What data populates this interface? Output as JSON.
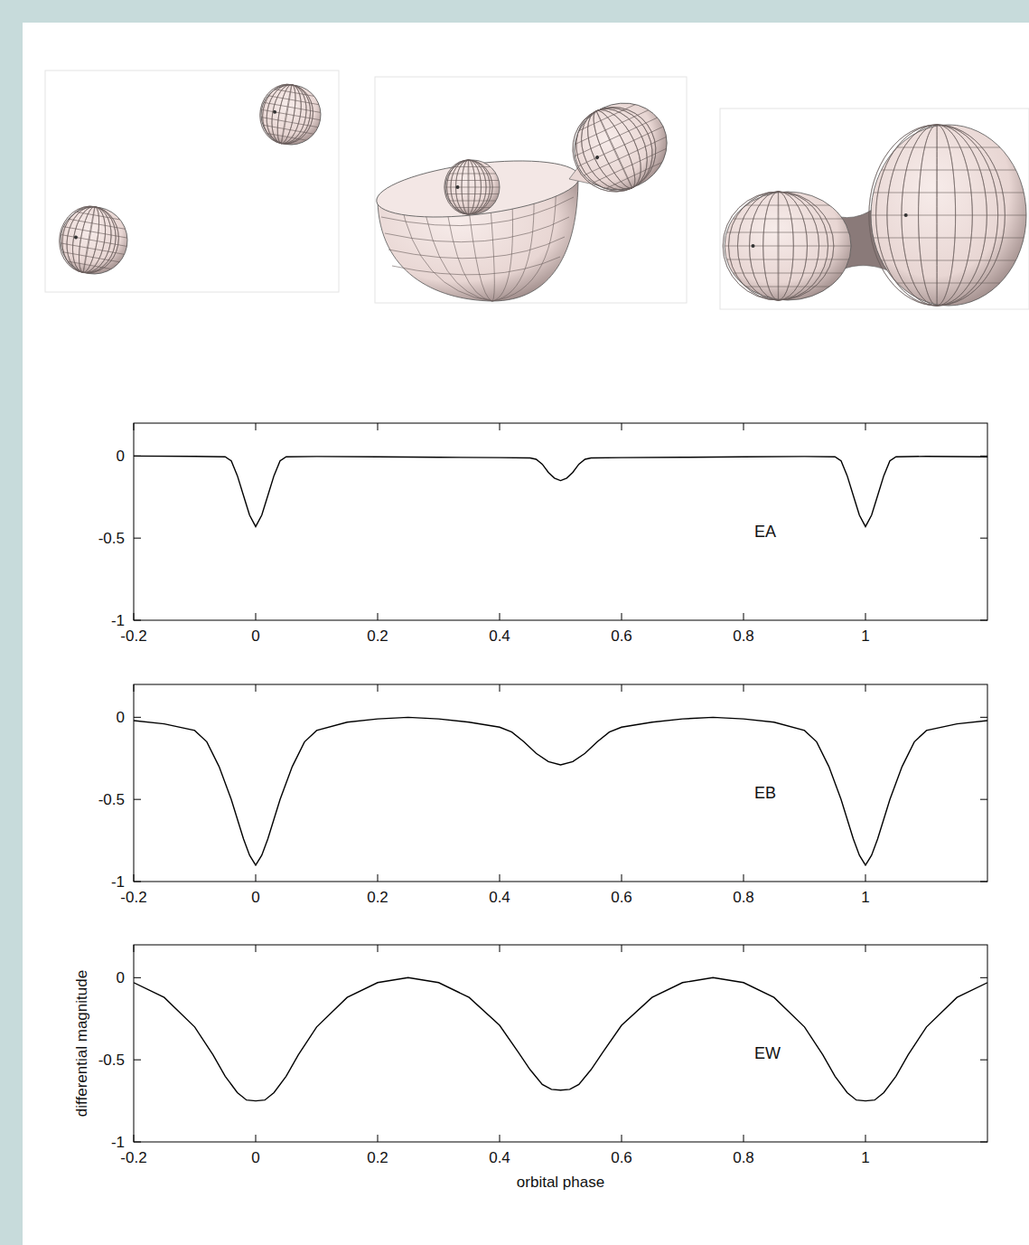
{
  "chart_data": [
    {
      "type": "line",
      "annotation": "EA",
      "color": "#000000",
      "xlim": [
        -0.2,
        1.2
      ],
      "ylim": [
        -1,
        0.2
      ],
      "xticks": [
        -0.2,
        0,
        0.2,
        0.4,
        0.6,
        0.8,
        1
      ],
      "yticks": [
        -1,
        -0.5,
        0
      ],
      "x": [
        -0.2,
        -0.1,
        -0.05,
        -0.04,
        -0.03,
        -0.02,
        -0.01,
        0,
        0.01,
        0.02,
        0.03,
        0.04,
        0.05,
        0.1,
        0.2,
        0.3,
        0.4,
        0.45,
        0.46,
        0.47,
        0.48,
        0.49,
        0.5,
        0.51,
        0.52,
        0.53,
        0.54,
        0.55,
        0.6,
        0.7,
        0.8,
        0.9,
        0.95,
        0.96,
        0.97,
        0.98,
        0.99,
        1,
        1.01,
        1.02,
        1.03,
        1.04,
        1.05,
        1.1,
        1.2
      ],
      "values": [
        0,
        -0.002,
        -0.005,
        -0.03,
        -0.12,
        -0.24,
        -0.36,
        -0.43,
        -0.36,
        -0.24,
        -0.12,
        -0.03,
        -0.005,
        -0.003,
        -0.005,
        -0.008,
        -0.01,
        -0.012,
        -0.02,
        -0.05,
        -0.1,
        -0.135,
        -0.15,
        -0.135,
        -0.1,
        -0.05,
        -0.02,
        -0.012,
        -0.01,
        -0.008,
        -0.005,
        -0.003,
        -0.005,
        -0.03,
        -0.12,
        -0.24,
        -0.36,
        -0.43,
        -0.36,
        -0.24,
        -0.12,
        -0.03,
        -0.005,
        -0.002,
        -0.005
      ]
    },
    {
      "type": "line",
      "annotation": "EB",
      "color": "#000000",
      "xlim": [
        -0.2,
        1.2
      ],
      "ylim": [
        -1,
        0.2
      ],
      "xticks": [
        -0.2,
        0,
        0.2,
        0.4,
        0.6,
        0.8,
        1
      ],
      "yticks": [
        -1,
        -0.5,
        0
      ],
      "x": [
        -0.2,
        -0.15,
        -0.1,
        -0.08,
        -0.06,
        -0.04,
        -0.02,
        -0.01,
        0,
        0.01,
        0.02,
        0.04,
        0.06,
        0.08,
        0.1,
        0.15,
        0.2,
        0.25,
        0.3,
        0.35,
        0.4,
        0.42,
        0.44,
        0.46,
        0.48,
        0.5,
        0.52,
        0.54,
        0.56,
        0.58,
        0.6,
        0.65,
        0.7,
        0.75,
        0.8,
        0.85,
        0.9,
        0.92,
        0.94,
        0.96,
        0.98,
        0.99,
        1,
        1.01,
        1.02,
        1.04,
        1.06,
        1.08,
        1.1,
        1.15,
        1.2
      ],
      "values": [
        -0.02,
        -0.04,
        -0.08,
        -0.15,
        -0.3,
        -0.5,
        -0.74,
        -0.84,
        -0.9,
        -0.84,
        -0.74,
        -0.5,
        -0.3,
        -0.15,
        -0.08,
        -0.03,
        -0.01,
        0,
        -0.01,
        -0.03,
        -0.06,
        -0.09,
        -0.15,
        -0.22,
        -0.27,
        -0.29,
        -0.27,
        -0.22,
        -0.15,
        -0.09,
        -0.06,
        -0.03,
        -0.01,
        0,
        -0.01,
        -0.03,
        -0.08,
        -0.15,
        -0.3,
        -0.5,
        -0.74,
        -0.84,
        -0.9,
        -0.84,
        -0.74,
        -0.5,
        -0.3,
        -0.15,
        -0.08,
        -0.04,
        -0.02
      ]
    },
    {
      "type": "line",
      "annotation": "EW",
      "color": "#000000",
      "x_label": "orbital phase",
      "y_label": "differential magnitude",
      "xlim": [
        -0.2,
        1.2
      ],
      "ylim": [
        -1,
        0.2
      ],
      "xticks": [
        -0.2,
        0,
        0.2,
        0.4,
        0.6,
        0.8,
        1
      ],
      "yticks": [
        -1,
        -0.5,
        0
      ],
      "x": [
        -0.2,
        -0.15,
        -0.1,
        -0.07,
        -0.05,
        -0.03,
        -0.015,
        0,
        0.015,
        0.03,
        0.05,
        0.07,
        0.1,
        0.15,
        0.2,
        0.25,
        0.3,
        0.35,
        0.4,
        0.43,
        0.45,
        0.47,
        0.485,
        0.5,
        0.515,
        0.53,
        0.55,
        0.57,
        0.6,
        0.65,
        0.7,
        0.75,
        0.8,
        0.85,
        0.9,
        0.93,
        0.95,
        0.97,
        0.985,
        1,
        1.015,
        1.03,
        1.05,
        1.07,
        1.1,
        1.15,
        1.2
      ],
      "values": [
        -0.03,
        -0.12,
        -0.3,
        -0.47,
        -0.6,
        -0.7,
        -0.745,
        -0.75,
        -0.745,
        -0.7,
        -0.6,
        -0.47,
        -0.3,
        -0.12,
        -0.03,
        0,
        -0.03,
        -0.12,
        -0.29,
        -0.45,
        -0.56,
        -0.65,
        -0.68,
        -0.685,
        -0.68,
        -0.65,
        -0.56,
        -0.45,
        -0.29,
        -0.12,
        -0.03,
        0,
        -0.03,
        -0.12,
        -0.3,
        -0.47,
        -0.6,
        -0.7,
        -0.745,
        -0.75,
        -0.745,
        -0.7,
        -0.6,
        -0.47,
        -0.3,
        -0.12,
        -0.03
      ]
    }
  ]
}
